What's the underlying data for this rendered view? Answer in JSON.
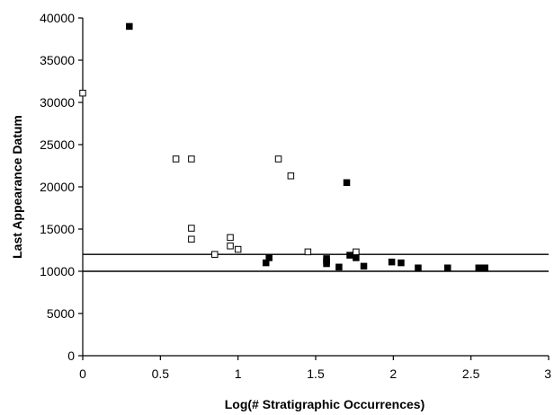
{
  "chart_data": {
    "type": "scatter",
    "title": "",
    "xlabel": "Log(# Stratigraphic Occurrences)",
    "ylabel": "Last Appearance Datum",
    "xlim": [
      0,
      3
    ],
    "ylim": [
      0,
      40000
    ],
    "x_ticks": [
      0,
      0.5,
      1,
      1.5,
      2,
      2.5,
      3
    ],
    "x_tick_labels": [
      "0",
      "0.5",
      "1",
      "1.5",
      "2",
      "2.5",
      "3"
    ],
    "y_ticks": [
      0,
      5000,
      10000,
      15000,
      20000,
      25000,
      30000,
      35000,
      40000
    ],
    "y_tick_labels": [
      "0",
      "5000",
      "10000",
      "15000",
      "20000",
      "25000",
      "30000",
      "35000",
      "40000"
    ],
    "grid": false,
    "legend": "none",
    "reference_lines": [
      {
        "axis": "y",
        "value": 12000
      },
      {
        "axis": "y",
        "value": 10000
      }
    ],
    "series": [
      {
        "marker": "open-square",
        "color": "#000000",
        "points": [
          [
            0.0,
            31100
          ],
          [
            0.6,
            23300
          ],
          [
            0.7,
            23300
          ],
          [
            0.7,
            15100
          ],
          [
            0.7,
            13800
          ],
          [
            0.85,
            12000
          ],
          [
            0.95,
            14000
          ],
          [
            0.95,
            13000
          ],
          [
            1.0,
            12600
          ],
          [
            1.26,
            23300
          ],
          [
            1.34,
            21300
          ],
          [
            1.45,
            12300
          ],
          [
            1.76,
            12300
          ]
        ]
      },
      {
        "marker": "filled-square",
        "color": "#000000",
        "points": [
          [
            0.3,
            39000
          ],
          [
            1.18,
            11000
          ],
          [
            1.2,
            11600
          ],
          [
            1.57,
            11500
          ],
          [
            1.57,
            11200
          ],
          [
            1.57,
            10900
          ],
          [
            1.65,
            10500
          ],
          [
            1.7,
            20500
          ],
          [
            1.72,
            11900
          ],
          [
            1.76,
            11600
          ],
          [
            1.81,
            10600
          ],
          [
            1.99,
            11100
          ],
          [
            2.05,
            11000
          ],
          [
            2.16,
            10400
          ],
          [
            2.35,
            10400
          ],
          [
            2.55,
            10400
          ],
          [
            2.59,
            10400
          ]
        ]
      }
    ]
  }
}
